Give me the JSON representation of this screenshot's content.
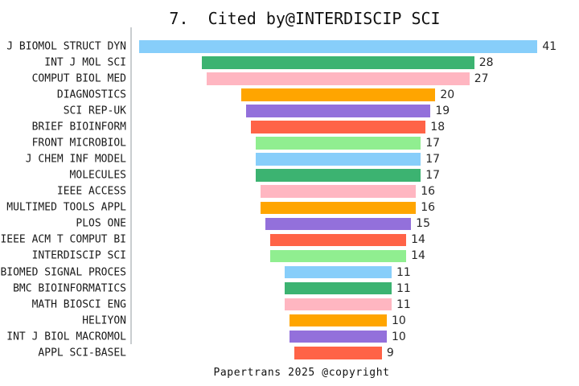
{
  "chart_data": {
    "type": "bar",
    "subtype": "centered-funnel",
    "orientation": "horizontal",
    "title": "7.  Cited by@INTERDISCIP SCI",
    "footer": "Papertrans 2025 @copyright",
    "categories": [
      "J BIOMOL STRUCT DYN",
      "INT J MOL SCI",
      "COMPUT BIOL MED",
      "DIAGNOSTICS",
      "SCI REP-UK",
      "BRIEF BIOINFORM",
      "FRONT MICROBIOL",
      "J CHEM INF MODEL",
      "MOLECULES",
      "IEEE ACCESS",
      "MULTIMED TOOLS APPL",
      "PLOS ONE",
      "IEEE ACM T COMPUT BI",
      "INTERDISCIP SCI",
      "BIOMED SIGNAL PROCES",
      "BMC BIOINFORMATICS",
      "MATH BIOSCI ENG",
      "HELIYON",
      "INT J BIOL MACROMOL",
      "APPL SCI-BASEL"
    ],
    "values": [
      41,
      28,
      27,
      20,
      19,
      18,
      17,
      17,
      17,
      16,
      16,
      15,
      14,
      14,
      11,
      11,
      11,
      10,
      10,
      9
    ],
    "palette": [
      "#87CEFA",
      "#3CB371",
      "#FFB6C1",
      "#FFA500",
      "#9370DB",
      "#FF6347",
      "#90EE90"
    ],
    "value_labels_shown": true,
    "legend": "none",
    "grid": false,
    "axis_line_color": "#c9cdd0",
    "text_color": "#1a1a1a",
    "xlim": [
      0,
      41
    ]
  }
}
